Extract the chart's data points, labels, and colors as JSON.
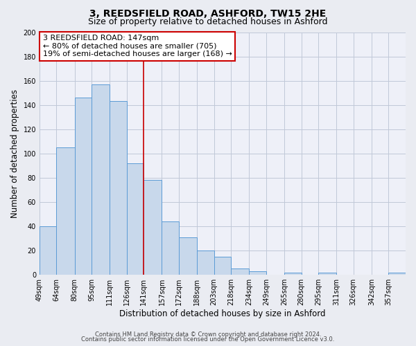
{
  "title": "3, REEDSFIELD ROAD, ASHFORD, TW15 2HE",
  "subtitle": "Size of property relative to detached houses in Ashford",
  "xlabel": "Distribution of detached houses by size in Ashford",
  "ylabel": "Number of detached properties",
  "bin_labels": [
    "49sqm",
    "64sqm",
    "80sqm",
    "95sqm",
    "111sqm",
    "126sqm",
    "141sqm",
    "157sqm",
    "172sqm",
    "188sqm",
    "203sqm",
    "218sqm",
    "234sqm",
    "249sqm",
    "265sqm",
    "280sqm",
    "295sqm",
    "311sqm",
    "326sqm",
    "342sqm",
    "357sqm"
  ],
  "bar_heights": [
    40,
    105,
    146,
    157,
    143,
    92,
    78,
    44,
    31,
    20,
    15,
    5,
    3,
    0,
    2,
    0,
    2,
    0,
    0,
    0,
    2
  ],
  "bin_edges": [
    49,
    64,
    80,
    95,
    111,
    126,
    141,
    157,
    172,
    188,
    203,
    218,
    234,
    249,
    265,
    280,
    295,
    311,
    326,
    342,
    357,
    372
  ],
  "bar_color": "#c8d8eb",
  "bar_edge_color": "#5b9bd5",
  "vline_x": 141,
  "vline_color": "#cc0000",
  "ylim": [
    0,
    200
  ],
  "yticks": [
    0,
    20,
    40,
    60,
    80,
    100,
    120,
    140,
    160,
    180,
    200
  ],
  "annotation_line1": "3 REEDSFIELD ROAD: 147sqm",
  "annotation_line2": "← 80% of detached houses are smaller (705)",
  "annotation_line3": "19% of semi-detached houses are larger (168) →",
  "annotation_box_color": "#ffffff",
  "annotation_box_edge": "#cc0000",
  "footer1": "Contains HM Land Registry data © Crown copyright and database right 2024.",
  "footer2": "Contains public sector information licensed under the Open Government Licence v3.0.",
  "bg_color": "#eaecf2",
  "plot_bg_color": "#eef0f8",
  "grid_color": "#c0c8d8",
  "title_fontsize": 10,
  "subtitle_fontsize": 9,
  "tick_fontsize": 7,
  "ylabel_fontsize": 8.5,
  "xlabel_fontsize": 8.5,
  "annotation_fontsize": 8,
  "footer_fontsize": 6
}
